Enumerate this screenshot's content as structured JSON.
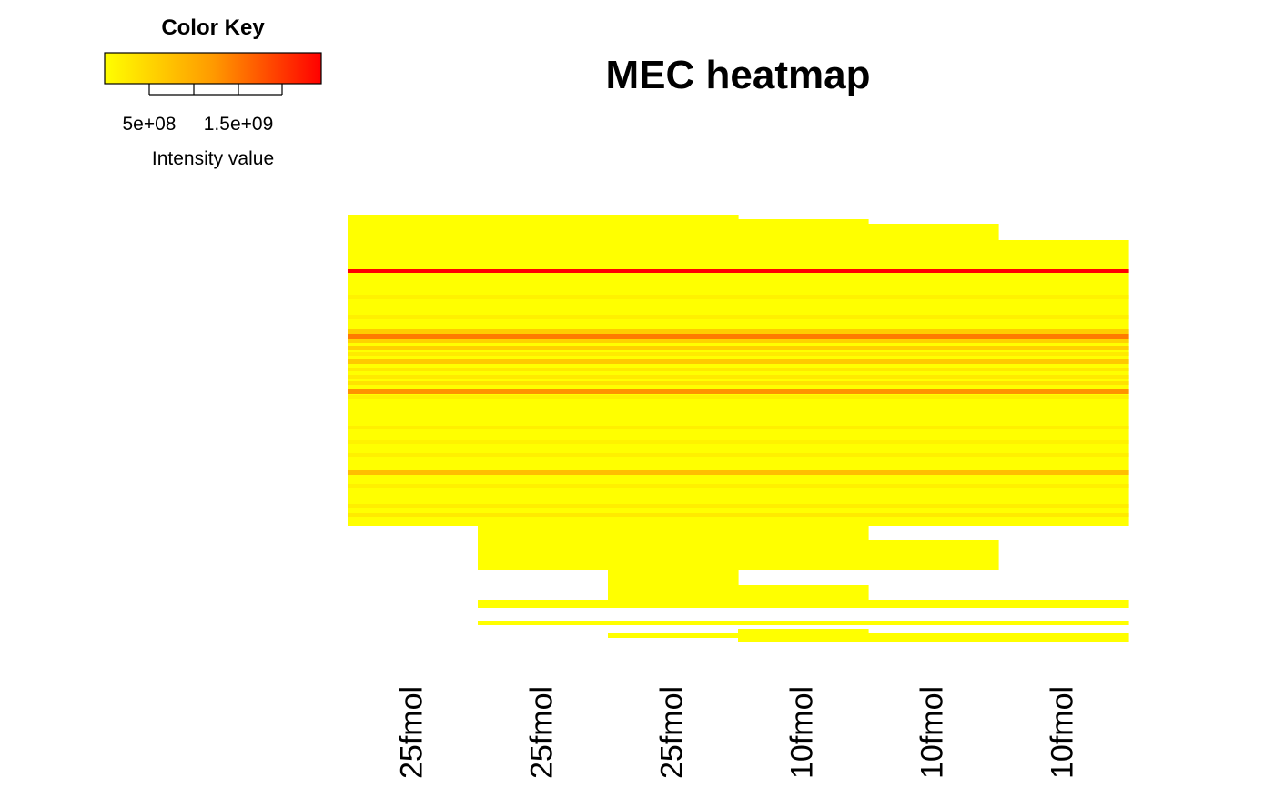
{
  "chart_data": {
    "type": "heatmap",
    "title": "MEC heatmap",
    "columns": [
      "25fmol",
      "25fmol",
      "25fmol",
      "10fmol",
      "10fmol",
      "10fmol"
    ],
    "color_key": {
      "title": "Color Key",
      "label": "Intensity value",
      "ticks": [
        "5e+08",
        "1.5e+09"
      ],
      "colors": [
        "#ffff00",
        "#ff0000"
      ],
      "range": [
        0,
        2400000000
      ]
    },
    "row_blocks": [
      {
        "top": 0,
        "bottom": 342,
        "cols": [
          0,
          1,
          2
        ]
      },
      {
        "top": 5,
        "bottom": 342,
        "cols": [
          3
        ]
      },
      {
        "top": 10,
        "bottom": 342,
        "cols": [
          4
        ]
      },
      {
        "top": 28,
        "bottom": 342,
        "cols": [
          5
        ]
      },
      {
        "top": 342,
        "bottom": 390,
        "cols": [
          1,
          2
        ]
      },
      {
        "top": 342,
        "bottom": 390,
        "cols": [
          3
        ]
      },
      {
        "top": 357,
        "bottom": 390,
        "cols": [
          4
        ]
      },
      {
        "top": 390,
        "bottom": 423,
        "cols": [
          2
        ]
      },
      {
        "top": 407,
        "bottom": 423,
        "cols": [
          3
        ]
      },
      {
        "top": 423,
        "bottom": 432,
        "cols": [
          1,
          2,
          3,
          4,
          5
        ]
      },
      {
        "top": 446,
        "bottom": 451,
        "cols": [
          1,
          2,
          3,
          4,
          5
        ]
      },
      {
        "top": 455,
        "bottom": 469,
        "cols": [
          3
        ]
      },
      {
        "top": 460,
        "bottom": 469,
        "cols": [
          4,
          5
        ]
      },
      {
        "top": 460,
        "bottom": 465,
        "cols": [
          2
        ]
      }
    ],
    "stripes": [
      {
        "top": 60,
        "height": 4,
        "color": "#ff0000"
      },
      {
        "top": 88,
        "height": 5,
        "color": "#fff200"
      },
      {
        "top": 110,
        "height": 5,
        "color": "#fff000"
      },
      {
        "top": 126,
        "height": 5,
        "color": "#ffcc00"
      },
      {
        "top": 131,
        "height": 6,
        "color": "#ff7a00"
      },
      {
        "top": 137,
        "height": 4,
        "color": "#ffd200"
      },
      {
        "top": 144,
        "height": 5,
        "color": "#ffd000"
      },
      {
        "top": 151,
        "height": 4,
        "color": "#ffea00"
      },
      {
        "top": 159,
        "height": 5,
        "color": "#ffc800"
      },
      {
        "top": 168,
        "height": 4,
        "color": "#ffe800"
      },
      {
        "top": 176,
        "height": 4,
        "color": "#ffea00"
      },
      {
        "top": 183,
        "height": 4,
        "color": "#ffe200"
      },
      {
        "top": 192,
        "height": 5,
        "color": "#ff9200"
      },
      {
        "top": 198,
        "height": 4,
        "color": "#fff000"
      },
      {
        "top": 232,
        "height": 4,
        "color": "#fff000"
      },
      {
        "top": 248,
        "height": 4,
        "color": "#fff200"
      },
      {
        "top": 262,
        "height": 4,
        "color": "#fff000"
      },
      {
        "top": 281,
        "height": 5,
        "color": "#ffbe00"
      },
      {
        "top": 296,
        "height": 4,
        "color": "#fff000"
      },
      {
        "top": 318,
        "height": 4,
        "color": "#ffee00"
      },
      {
        "top": 328,
        "height": 4,
        "color": "#ffea00"
      }
    ]
  }
}
